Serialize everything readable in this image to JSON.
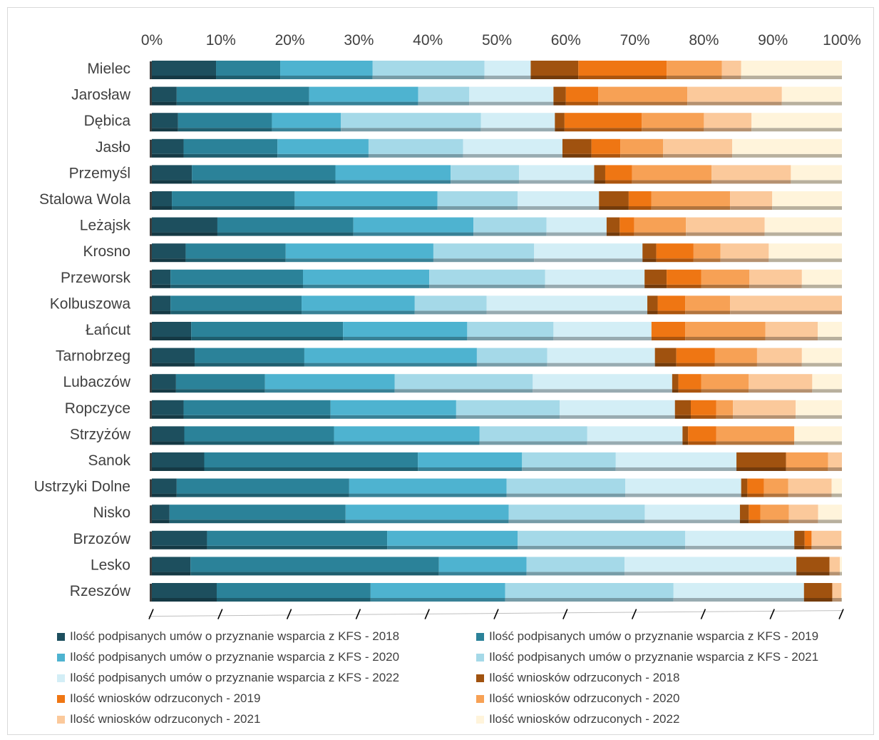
{
  "chart_data": {
    "type": "bar",
    "orientation": "horizontal",
    "stacked": "percent",
    "x_ticks": [
      "0%",
      "10%",
      "20%",
      "30%",
      "40%",
      "50%",
      "60%",
      "70%",
      "80%",
      "90%",
      "100%"
    ],
    "xlim": [
      0,
      100
    ],
    "grid": false,
    "legend_position": "bottom",
    "categories": [
      "Mielec",
      "Jarosław",
      "Dębica",
      "Jasło",
      "Przemyśl",
      "Stalowa Wola",
      "Leżajsk",
      "Krosno",
      "Przeworsk",
      "Kolbuszowa",
      "Łańcut",
      "Tarnobrzeg",
      "Lubaczów",
      "Ropczyce",
      "Strzyżów",
      "Sanok",
      "Ustrzyki Dolne",
      "Nisko",
      "Brzozów",
      "Lesko",
      "Rzeszów"
    ],
    "series": [
      {
        "name": "Ilość podpisanych umów o przyznanie wsparcia z KFS - 2018",
        "color": "#1d4f5e",
        "values": [
          9.3,
          3.6,
          3.8,
          4.6,
          5.8,
          2.9,
          9.5,
          4.9,
          2.7,
          2.7,
          5.7,
          6.2,
          3.5,
          4.6,
          4.7,
          7.6,
          3.6,
          2.6,
          8.0,
          5.6,
          9.4
        ]
      },
      {
        "name": "Ilość podpisanych umów o przyznanie wsparcia z KFS - 2019",
        "color": "#2b8299",
        "values": [
          9.3,
          19.2,
          13.6,
          13.6,
          20.8,
          17.8,
          19.7,
          14.5,
          19.2,
          19.0,
          22.0,
          15.9,
          12.9,
          21.3,
          21.7,
          31.0,
          25.0,
          25.9,
          26.1,
          36.0,
          22.3
        ]
      },
      {
        "name": "Ilość podpisanych umów o przyznanie wsparcia z KFS - 2020",
        "color": "#4eb3d0",
        "values": [
          13.4,
          15.8,
          10.0,
          13.2,
          16.7,
          20.7,
          17.4,
          21.4,
          18.3,
          16.4,
          18.0,
          25.0,
          18.8,
          18.2,
          21.1,
          15.1,
          22.8,
          24.0,
          18.9,
          12.7,
          19.5
        ]
      },
      {
        "name": "Ilość podpisanych umów o przyznanie wsparcia z KFS - 2021",
        "color": "#a5d9e8",
        "values": [
          16.2,
          7.4,
          20.3,
          13.7,
          9.9,
          11.6,
          10.6,
          14.6,
          16.8,
          10.4,
          12.5,
          10.2,
          20.0,
          15.0,
          15.6,
          13.6,
          17.2,
          20.0,
          24.3,
          14.2,
          24.4
        ]
      },
      {
        "name": "Ilość podpisanych umów o przyznanie wsparcia z KFS - 2022",
        "color": "#d3eef6",
        "values": [
          6.7,
          12.2,
          10.7,
          14.4,
          10.9,
          11.8,
          8.7,
          15.7,
          14.4,
          23.3,
          14.2,
          15.6,
          20.2,
          16.7,
          13.8,
          17.5,
          16.8,
          14.0,
          15.8,
          24.9,
          18.9
        ]
      },
      {
        "name": "Ilość wniosków odrzuconych - 2018",
        "color": "#a0520f",
        "values": [
          6.9,
          1.8,
          1.4,
          4.2,
          1.6,
          4.3,
          1.9,
          2.0,
          3.2,
          1.5,
          0.0,
          3.1,
          0.9,
          2.3,
          0.8,
          7.2,
          0.9,
          1.3,
          1.5,
          4.8,
          4.1
        ]
      },
      {
        "name": "Ilość wniosków odrzuconych - 2019",
        "color": "#ef7613",
        "values": [
          12.8,
          4.7,
          11.2,
          4.2,
          3.9,
          3.3,
          2.1,
          5.4,
          5.0,
          4.0,
          4.9,
          5.6,
          3.3,
          3.7,
          4.1,
          0.0,
          2.4,
          1.7,
          1.0,
          0.0,
          0.0
        ]
      },
      {
        "name": "Ilość wniosków odrzuconych - 2020",
        "color": "#f7a155",
        "values": [
          8.0,
          12.9,
          9.0,
          6.2,
          11.5,
          11.4,
          7.5,
          3.9,
          7.0,
          6.5,
          11.6,
          6.1,
          6.9,
          2.4,
          11.3,
          6.1,
          3.5,
          4.2,
          0.0,
          0.0,
          0.0
        ]
      },
      {
        "name": "Ilość wniosków odrzuconych - 2021",
        "color": "#fbc99b",
        "values": [
          2.8,
          13.7,
          6.9,
          10.0,
          11.5,
          6.1,
          11.4,
          7.0,
          7.6,
          16.2,
          7.6,
          6.5,
          9.2,
          9.1,
          0.0,
          2.0,
          6.3,
          4.3,
          4.3,
          1.5,
          1.3
        ]
      },
      {
        "name": "Ilość wniosków odrzuconych - 2022",
        "color": "#fff4db",
        "values": [
          14.6,
          8.7,
          13.1,
          15.9,
          7.4,
          10.1,
          11.2,
          10.6,
          5.8,
          0.0,
          3.5,
          5.8,
          4.3,
          6.7,
          6.9,
          0.0,
          1.5,
          3.5,
          0.1,
          0.3,
          0.1
        ]
      }
    ]
  }
}
